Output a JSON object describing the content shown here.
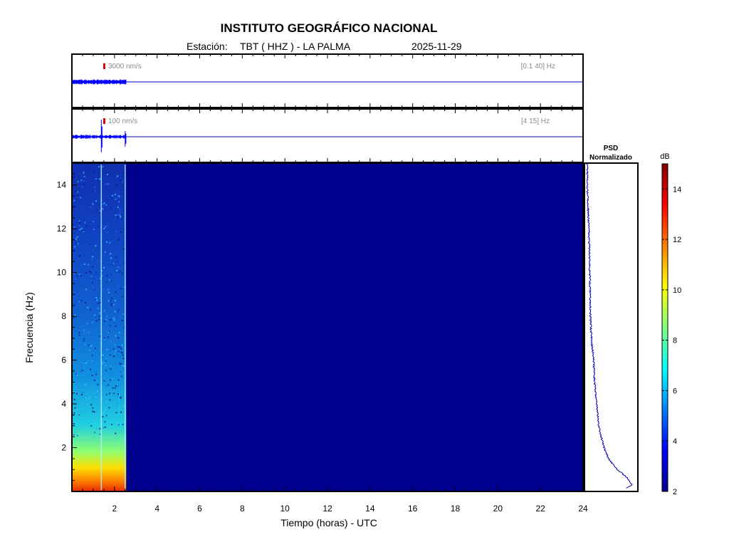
{
  "header": {
    "title": "INSTITUTO GEOGRÁFICO NACIONAL",
    "station_prefix": "Estación:",
    "station": "TBT ( HHZ ) - LA PALMA",
    "date": "2025-11-29"
  },
  "chart_data": [
    {
      "type": "line",
      "name": "seismogram-broadband",
      "scale_label": "3000 nm/s",
      "band_label": "[0.1 40] Hz",
      "xlim": [
        0,
        24
      ],
      "data_end_hour": 2.55
    },
    {
      "type": "line",
      "name": "seismogram-filtered",
      "scale_label": "100 nm/s",
      "band_label": "[4 15] Hz",
      "xlim": [
        0,
        24
      ],
      "data_end_hour": 2.55,
      "events_hours": [
        1.38,
        2.5
      ]
    },
    {
      "type": "heatmap",
      "name": "spectrogram",
      "xlabel": "Tiempo (horas) - UTC",
      "ylabel": "Frecuencia  (Hz)",
      "xlim": [
        0,
        24
      ],
      "ylim": [
        0,
        15
      ],
      "xticks": [
        2,
        4,
        6,
        8,
        10,
        12,
        14,
        16,
        18,
        20,
        22,
        24
      ],
      "yticks": [
        2,
        4,
        6,
        8,
        10,
        12,
        14
      ],
      "data_end_hour": 2.55,
      "event_lines_hours": [
        1.38,
        2.5
      ]
    },
    {
      "type": "line",
      "name": "psd",
      "title_line1": "PSD",
      "title_line2": "Normalizado",
      "points": [
        [
          0.15,
          0.78
        ],
        [
          0.3,
          0.9
        ],
        [
          0.6,
          0.82
        ],
        [
          1.0,
          0.62
        ],
        [
          1.5,
          0.45
        ],
        [
          2.0,
          0.36
        ],
        [
          3.0,
          0.26
        ],
        [
          4.0,
          0.22
        ],
        [
          5.0,
          0.18
        ],
        [
          6.0,
          0.16
        ],
        [
          7.0,
          0.12
        ],
        [
          8.0,
          0.1
        ],
        [
          10.0,
          0.09
        ],
        [
          12.0,
          0.07
        ],
        [
          14.0,
          0.04
        ],
        [
          15.0,
          0.04
        ]
      ]
    },
    {
      "type": "heatmap",
      "name": "colorbar",
      "unit": "dB",
      "range": [
        2,
        15
      ],
      "ticks": [
        2,
        4,
        6,
        8,
        10,
        12,
        14
      ]
    }
  ]
}
